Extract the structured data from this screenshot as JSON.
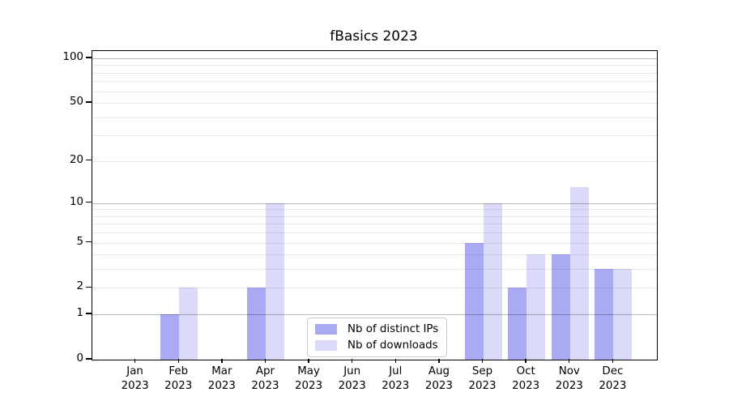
{
  "chart_data": {
    "type": "bar",
    "title": "fBasics 2023",
    "categories": [
      "Jan 2023",
      "Feb 2023",
      "Mar 2023",
      "Apr 2023",
      "May 2023",
      "Jun 2023",
      "Jul 2023",
      "Aug 2023",
      "Sep 2023",
      "Oct 2023",
      "Nov 2023",
      "Dec 2023"
    ],
    "series": [
      {
        "name": "Nb of distinct IPs",
        "color": "#a9a9f4",
        "values": [
          0,
          1,
          0,
          2,
          0,
          0,
          0,
          0,
          5,
          2,
          4,
          3
        ]
      },
      {
        "name": "Nb of downloads",
        "color": "#dadaf8",
        "values": [
          0,
          2,
          0,
          10,
          0,
          0,
          0,
          0,
          10,
          4,
          13,
          3
        ]
      }
    ],
    "y_axis": {
      "scale": "log1p",
      "ticks": [
        0,
        1,
        2,
        5,
        10,
        20,
        50,
        100
      ],
      "max": 112,
      "major_gridlines": [
        1,
        10,
        100
      ],
      "minor_gridlines": [
        2,
        3,
        4,
        5,
        6,
        7,
        8,
        9,
        20,
        30,
        40,
        50,
        60,
        70,
        80,
        90
      ]
    },
    "x_axis": {
      "tick_label_lines": 2
    },
    "legend": {
      "location": "lower center, inside plot"
    },
    "grid": true,
    "gridlines_above_bars": true,
    "background_color": "#ffffff",
    "colors": {
      "spine": "#000000",
      "major_grid": "#b8b8b8",
      "minor_grid": "#ebebeb"
    }
  }
}
